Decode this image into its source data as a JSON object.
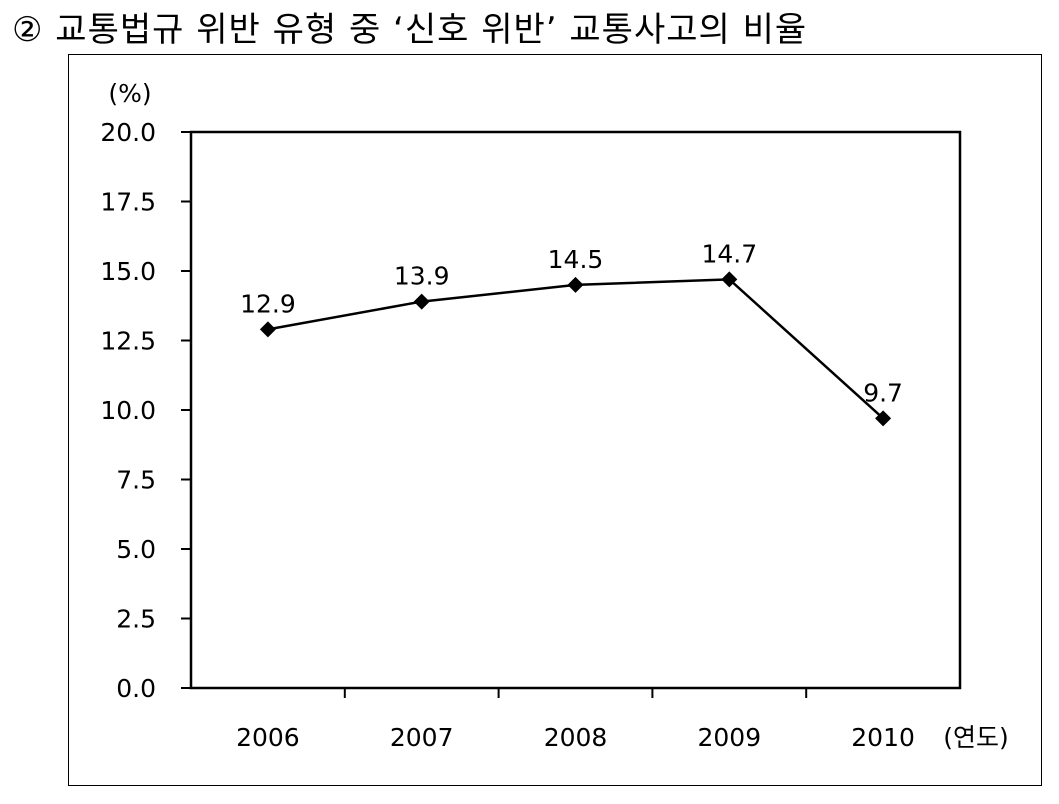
{
  "title": "② 교통법규 위반 유형 중 ‘신호 위반’ 교통사고의 비율",
  "chart_data": {
    "type": "line",
    "title": "② 교통법규 위반 유형 중 ‘신호 위반’ 교통사고의 비율",
    "ylabel": "(%)",
    "xlabel": "(연도)",
    "categories": [
      "2006",
      "2007",
      "2008",
      "2009",
      "2010"
    ],
    "series": [
      {
        "values": [
          12.9,
          13.9,
          14.5,
          14.7,
          9.7
        ]
      }
    ],
    "data_labels": [
      "12.9",
      "13.9",
      "14.5",
      "14.7",
      "9.7"
    ],
    "ylim": [
      0,
      20
    ],
    "yticks": [
      "0.0",
      "2.5",
      "5.0",
      "7.5",
      "10.0",
      "12.5",
      "15.0",
      "17.5",
      "20.0"
    ],
    "grid": false,
    "marker": "diamond",
    "line_color": "#000000"
  }
}
